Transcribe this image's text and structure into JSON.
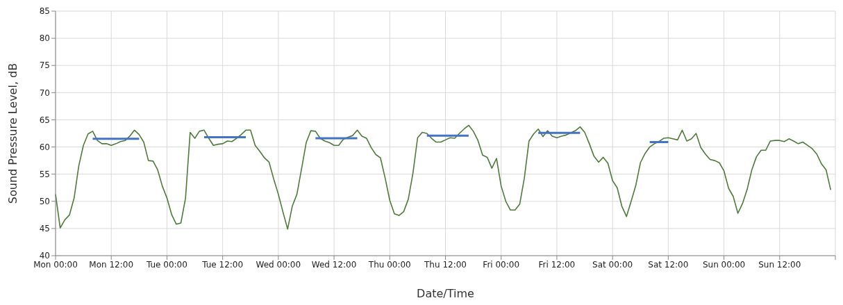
{
  "chart_data": {
    "type": "line",
    "xlabel": "Date/Time",
    "ylabel": "Sound Pressure Level, dB",
    "ylim": [
      40,
      85
    ],
    "yticks": [
      40,
      45,
      50,
      55,
      60,
      65,
      70,
      75,
      80,
      85
    ],
    "categories": [
      "Mon 00:00",
      null,
      null,
      null,
      null,
      null,
      null,
      null,
      null,
      null,
      null,
      null,
      "Mon 12:00",
      null,
      null,
      null,
      null,
      null,
      null,
      null,
      null,
      null,
      null,
      null,
      "Tue 00:00",
      null,
      null,
      null,
      null,
      null,
      null,
      null,
      null,
      null,
      null,
      null,
      "Tue 12:00",
      null,
      null,
      null,
      null,
      null,
      null,
      null,
      null,
      null,
      null,
      null,
      "Wed 00:00",
      null,
      null,
      null,
      null,
      null,
      null,
      null,
      null,
      null,
      null,
      null,
      "Wed 12:00",
      null,
      null,
      null,
      null,
      null,
      null,
      null,
      null,
      null,
      null,
      null,
      "Thu 00:00",
      null,
      null,
      null,
      null,
      null,
      null,
      null,
      null,
      null,
      null,
      null,
      "Thu 12:00",
      null,
      null,
      null,
      null,
      null,
      null,
      null,
      null,
      null,
      null,
      null,
      "Fri 00:00",
      null,
      null,
      null,
      null,
      null,
      null,
      null,
      null,
      null,
      null,
      null,
      "Fri 12:00",
      null,
      null,
      null,
      null,
      null,
      null,
      null,
      null,
      null,
      null,
      null,
      "Sat 00:00",
      null,
      null,
      null,
      null,
      null,
      null,
      null,
      null,
      null,
      null,
      null,
      "Sat 12:00",
      null,
      null,
      null,
      null,
      null,
      null,
      null,
      null,
      null,
      null,
      null,
      "Sun 00:00",
      null,
      null,
      null,
      null,
      null,
      null,
      null,
      null,
      null,
      null,
      null,
      "Sun 12:00",
      null,
      null,
      null,
      null,
      null,
      null,
      null,
      null,
      null,
      null,
      null,
      null
    ],
    "grid": true,
    "legend": false,
    "marker": "none",
    "line_style": "solid",
    "series": [
      {
        "color": "#4e7a3a",
        "values": [
          51.3,
          45.1,
          46.6,
          47.5,
          50.6,
          56.5,
          60.3,
          62.4,
          62.9,
          61.2,
          60.6,
          60.6,
          60.3,
          60.6,
          61.0,
          61.2,
          62.0,
          63.1,
          62.3,
          60.9,
          57.5,
          57.4,
          55.8,
          52.8,
          50.6,
          47.6,
          45.8,
          46.0,
          50.6,
          62.7,
          61.6,
          62.9,
          63.1,
          61.6,
          60.3,
          60.5,
          60.6,
          61.1,
          61.0,
          61.6,
          62.3,
          63.1,
          63.1,
          60.3,
          59.2,
          58.0,
          57.2,
          54.1,
          51.3,
          48.0,
          44.9,
          49.1,
          51.3,
          56.0,
          60.8,
          63.0,
          62.9,
          61.6,
          61.1,
          60.8,
          60.3,
          60.3,
          61.4,
          61.8,
          62.1,
          63.1,
          62.0,
          61.6,
          59.9,
          58.6,
          58.0,
          54.3,
          50.2,
          47.7,
          47.4,
          48.1,
          50.4,
          55.2,
          61.7,
          62.7,
          62.5,
          61.6,
          60.9,
          60.9,
          61.3,
          61.7,
          61.6,
          62.5,
          63.3,
          64.0,
          62.9,
          61.2,
          58.5,
          58.1,
          56.1,
          57.9,
          52.8,
          50.0,
          48.4,
          48.4,
          49.5,
          54.3,
          61.1,
          62.4,
          63.3,
          61.9,
          63.0,
          62.0,
          61.7,
          62.0,
          62.2,
          62.6,
          63.0,
          63.7,
          62.7,
          60.6,
          58.3,
          57.2,
          58.1,
          57.0,
          53.8,
          52.5,
          49.1,
          47.2,
          50.0,
          52.9,
          57.1,
          58.8,
          60.0,
          60.6,
          61.0,
          61.6,
          61.7,
          61.5,
          61.3,
          63.1,
          61.1,
          61.5,
          62.5,
          59.9,
          58.7,
          57.7,
          57.5,
          57.1,
          55.6,
          52.4,
          50.9,
          47.8,
          49.6,
          52.2,
          55.8,
          58.2,
          59.4,
          59.4,
          61.1,
          61.2,
          61.2,
          61.0,
          61.5,
          61.1,
          60.6,
          60.9,
          60.3,
          59.7,
          58.7,
          56.9,
          55.8,
          52.1,
          null
        ]
      },
      {
        "color": "#4472c4",
        "values": [
          null,
          null,
          null,
          null,
          null,
          null,
          null,
          null,
          61.5,
          61.5,
          61.5,
          61.5,
          61.5,
          61.5,
          61.5,
          61.5,
          61.5,
          61.5,
          61.5,
          null,
          null,
          null,
          null,
          null,
          null,
          null,
          null,
          null,
          null,
          null,
          null,
          null,
          61.8,
          61.8,
          61.8,
          61.8,
          61.8,
          61.8,
          61.8,
          61.8,
          61.8,
          61.8,
          null,
          null,
          null,
          null,
          null,
          null,
          null,
          null,
          null,
          null,
          null,
          null,
          null,
          null,
          61.6,
          61.6,
          61.6,
          61.6,
          61.6,
          61.6,
          61.6,
          61.6,
          61.6,
          61.6,
          null,
          null,
          null,
          null,
          null,
          null,
          null,
          null,
          null,
          null,
          null,
          null,
          null,
          null,
          62.1,
          62.1,
          62.1,
          62.1,
          62.1,
          62.1,
          62.1,
          62.1,
          62.1,
          62.1,
          null,
          null,
          null,
          null,
          null,
          null,
          null,
          null,
          null,
          null,
          null,
          null,
          null,
          null,
          62.6,
          62.6,
          62.6,
          62.6,
          62.6,
          62.6,
          62.6,
          62.6,
          62.6,
          62.6,
          null,
          null,
          null,
          null,
          null,
          null,
          null,
          null,
          null,
          null,
          null,
          null,
          null,
          null,
          60.9,
          60.9,
          60.9,
          60.9,
          60.9,
          null,
          null,
          null,
          null,
          null,
          null,
          null,
          null,
          null,
          null,
          null,
          null,
          null,
          null,
          null,
          null,
          null,
          null,
          null,
          null,
          null,
          null,
          null,
          null,
          null,
          null,
          null,
          null,
          null,
          null,
          null,
          null,
          null,
          null,
          null,
          null
        ]
      }
    ]
  }
}
